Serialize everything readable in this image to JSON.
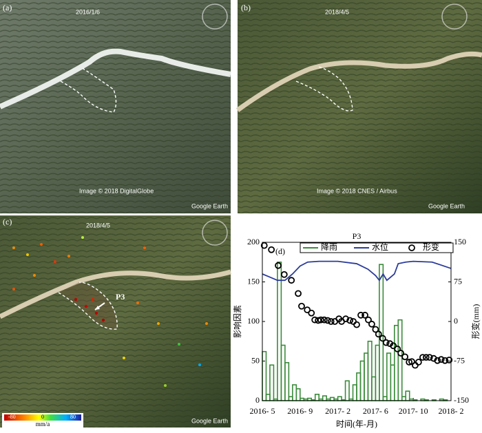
{
  "panels": {
    "a": {
      "label": "(a)",
      "date": "2016/1/6",
      "credit": "Google Earth",
      "imagery": "Image © 2018 DigitalGlobe"
    },
    "b": {
      "label": "(b)",
      "date": "2018/4/5",
      "credit": "Google Earth",
      "imagery": "Image © 2018 CNES / Airbus"
    },
    "c": {
      "label": "(c)",
      "date": "2018/4/5",
      "credit": "Google Earth",
      "point": "P3",
      "colorbar": {
        "min": "-80",
        "mid": "0",
        "max": "80",
        "unit": "mm/a"
      }
    }
  },
  "chart_data": {
    "type": "combo",
    "title": "P3",
    "panel_label": "(d)",
    "x_label": "时间(年-月)",
    "y_label": "影响因素",
    "y2_label": "形变(mm)",
    "xlim": [
      0,
      5
    ],
    "xticks": [
      {
        "value": 0,
        "label": "2016- 5"
      },
      {
        "value": 1,
        "label": "2016- 9"
      },
      {
        "value": 2,
        "label": "2017- 2"
      },
      {
        "value": 3,
        "label": "2017- 6"
      },
      {
        "value": 4,
        "label": "2017- 10"
      },
      {
        "value": 5,
        "label": "2018- 2"
      }
    ],
    "ylim": [
      0,
      200
    ],
    "yticks": [
      0,
      50,
      100,
      150,
      200
    ],
    "y2lim": [
      -150,
      150
    ],
    "y2ticks": [
      -150,
      -75,
      0,
      75,
      150
    ],
    "legend": "top",
    "series": [
      {
        "name": "降雨",
        "type": "histogram",
        "color": "#3a8a3a",
        "bins": [
          0,
          0.1,
          0.2,
          0.3,
          0.4,
          0.5,
          0.6,
          0.7,
          0.8,
          0.9,
          1,
          1.1,
          1.2,
          1.3,
          1.4,
          1.5,
          1.6,
          1.7,
          1.8,
          1.9,
          2,
          2.1,
          2.2,
          2.3,
          2.4,
          2.5,
          2.6,
          2.7,
          2.8,
          2.9,
          3,
          3.1,
          3.2,
          3.3,
          3.4,
          3.5,
          3.6,
          3.7,
          3.8,
          3.9,
          4,
          4.1,
          4.2,
          4.3,
          4.4,
          4.5,
          4.6,
          4.7,
          4.8,
          4.9,
          5
        ],
        "values": [
          62,
          8,
          45,
          2,
          175,
          70,
          48,
          5,
          20,
          15,
          3,
          2,
          3,
          1,
          8,
          2,
          6,
          2,
          4,
          2,
          5,
          1,
          25,
          2,
          20,
          35,
          50,
          60,
          75,
          30,
          70,
          172,
          5,
          60,
          45,
          95,
          102,
          5,
          12,
          2,
          1,
          0,
          2,
          1,
          0,
          1,
          0,
          2,
          1,
          0
        ]
      },
      {
        "name": "水位",
        "type": "line",
        "color": "#2b3b9a",
        "x": [
          0,
          0.2,
          0.4,
          0.6,
          0.8,
          1.0,
          1.2,
          1.5,
          2.0,
          2.5,
          2.8,
          3.0,
          3.1,
          3.2,
          3.3,
          3.5,
          3.6,
          3.8,
          4.0,
          4.5,
          5.0
        ],
        "values": [
          160,
          156,
          152,
          152,
          160,
          170,
          175,
          176,
          176,
          173,
          166,
          158,
          152,
          160,
          152,
          160,
          173,
          175,
          176,
          175,
          167
        ]
      },
      {
        "name": "形变",
        "type": "scatter",
        "color": "#000000",
        "axis": "y2",
        "x": [
          0.05,
          0.24,
          0.42,
          0.58,
          0.77,
          0.95,
          1.04,
          1.19,
          1.3,
          1.39,
          1.48,
          1.55,
          1.64,
          1.73,
          1.82,
          1.92,
          2.03,
          2.1,
          2.21,
          2.32,
          2.41,
          2.5,
          2.61,
          2.72,
          2.81,
          2.9,
          3.0,
          3.08,
          3.19,
          3.28,
          3.38,
          3.47,
          3.58,
          3.67,
          3.78,
          3.89,
          3.96,
          4.05,
          4.14,
          4.25,
          4.34,
          4.43,
          4.54,
          4.64,
          4.74,
          4.84,
          4.95
        ],
        "values": [
          144,
          136,
          106,
          89,
          78,
          53,
          29,
          22,
          16,
          3,
          2,
          3,
          3,
          2,
          0,
          0,
          5,
          0,
          5,
          2,
          0,
          -6,
          12,
          12,
          3,
          -5,
          -15,
          -24,
          -32,
          -40,
          -42,
          -46,
          -52,
          -60,
          -67,
          -77,
          -76,
          -83,
          -77,
          -68,
          -68,
          -68,
          -70,
          -74,
          -72,
          -74,
          -73
        ]
      }
    ]
  }
}
